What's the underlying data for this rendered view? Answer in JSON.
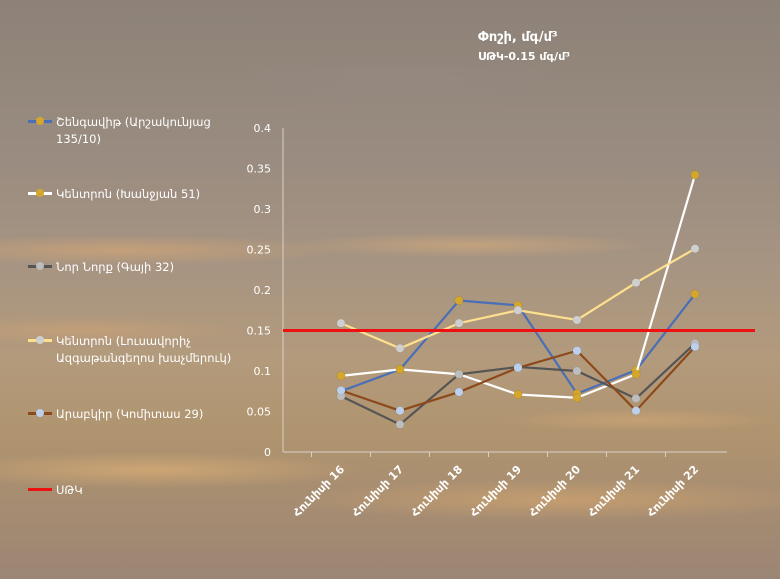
{
  "title": "Փոշի, մգ/մ³",
  "subtitle": "ՍԹԿ-0.15 մգ/մ³",
  "chart_data": {
    "type": "line",
    "title": "Փոշի, մգ/մ³",
    "subtitle": "ՍԹԿ-0.15 մգ/մ³",
    "categories": [
      "Հունիսի 16",
      "Հունիսի 17",
      "Հունիսի 18",
      "Հունիսի 19",
      "Հունիսի 20",
      "Հունիսի 21",
      "Հունիսի 22"
    ],
    "ylim": [
      0,
      0.4
    ],
    "yticks": [
      "0",
      "0.05",
      "0.1",
      "0.15",
      "0.2",
      "0.25",
      "0.3",
      "0.35",
      "0.4"
    ],
    "grid": false,
    "legend_position": "left",
    "series": [
      {
        "name": "Շենգավիթ (Արշակունյաց 135/10)",
        "line_color": "#4a6fb5",
        "marker_color": "#d4a72c",
        "values": [
          0.075,
          0.102,
          0.187,
          0.181,
          0.072,
          0.101,
          0.195
        ]
      },
      {
        "name": "Կենտրոն (Խանջյան 51)",
        "line_color": "#ffffff",
        "marker_color": "#d4a72c",
        "values": [
          0.094,
          0.102,
          0.096,
          0.071,
          0.067,
          0.096,
          0.342
        ]
      },
      {
        "name": "Նոր Նորք (Գայի 32)",
        "line_color": "#555555",
        "marker_color": "#bdbdbd",
        "values": [
          0.069,
          0.034,
          0.096,
          0.105,
          0.1,
          0.066,
          0.134
        ]
      },
      {
        "name": "Կենտրոն (Լուսավորիչ Ազգաթանգեղոս խաչմերուկ)",
        "line_color": "#fde08e",
        "marker_color": "#cfcfcf",
        "values": [
          0.159,
          0.128,
          0.159,
          0.175,
          0.163,
          0.209,
          0.251
        ]
      },
      {
        "name": "Արաբկիր (Կոմիտաս 29)",
        "line_color": "#8c4a1c",
        "marker_color": "#bcd0ee",
        "values": [
          0.076,
          0.051,
          0.074,
          0.104,
          0.125,
          0.051,
          0.13
        ]
      },
      {
        "name": "ՍԹԿ",
        "line_color": "#ee1111",
        "marker_color": "",
        "values": [
          0.15,
          0.15,
          0.15,
          0.15,
          0.15,
          0.15,
          0.15
        ]
      }
    ]
  }
}
